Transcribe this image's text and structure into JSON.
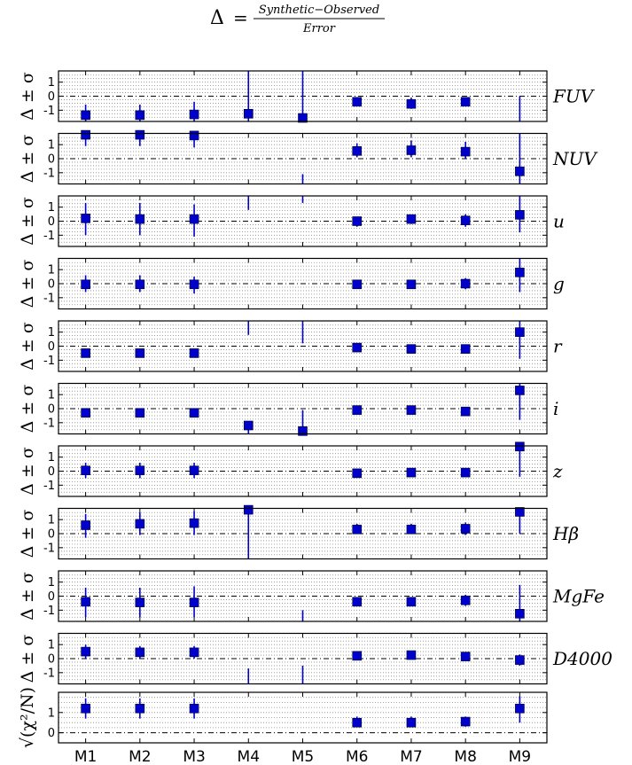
{
  "title": {
    "lhs": "Δ",
    "eq": "=",
    "numerator": "Synthetic−Observed",
    "denominator": "Error"
  },
  "chart_data": {
    "type": "scatter",
    "categories": [
      "M1",
      "M2",
      "M3",
      "M4",
      "M5",
      "M6",
      "M7",
      "M8",
      "M9"
    ],
    "ylabel": "Δ ± σ",
    "yticks": [
      "-1",
      "0",
      "1"
    ],
    "ylim": [
      -1.8,
      1.8
    ],
    "gridlines": [
      -1.5,
      -1.25,
      -1.0,
      -0.75,
      -0.5,
      -0.25,
      0.25,
      0.5,
      0.75,
      1.0,
      1.25,
      1.5
    ],
    "marker_color": "#0000cc",
    "panels": [
      {
        "band": "FUV",
        "values": [
          -1.35,
          -1.35,
          -1.3,
          -1.25,
          -1.55,
          -0.4,
          -0.55,
          -0.4,
          null
        ],
        "err_lo": [
          -1.8,
          -1.8,
          -1.8,
          -1.8,
          -1.8,
          -0.7,
          -0.9,
          -0.7,
          -1.8
        ],
        "err_hi": [
          -0.6,
          -0.6,
          -0.4,
          1.8,
          1.8,
          -0.1,
          -0.1,
          -0.1,
          0.0
        ]
      },
      {
        "band": "NUV",
        "values": [
          1.7,
          1.7,
          1.65,
          null,
          null,
          0.55,
          0.6,
          0.5,
          -0.9
        ],
        "err_lo": [
          0.9,
          0.9,
          0.8,
          null,
          -1.8,
          0.1,
          0.1,
          0.0,
          -1.8
        ],
        "err_hi": [
          1.8,
          1.8,
          1.8,
          null,
          -1.1,
          1.1,
          1.3,
          1.2,
          1.8
        ]
      },
      {
        "band": "u",
        "values": [
          0.2,
          0.15,
          0.15,
          null,
          null,
          0.0,
          0.15,
          0.05,
          0.45
        ],
        "err_lo": [
          -1.0,
          -1.0,
          -1.1,
          0.8,
          1.3,
          -0.4,
          -0.2,
          -0.4,
          -0.8
        ],
        "err_hi": [
          1.3,
          1.3,
          1.2,
          1.8,
          1.8,
          0.3,
          0.4,
          0.5,
          1.8
        ]
      },
      {
        "band": "g",
        "values": [
          -0.05,
          -0.05,
          -0.05,
          null,
          null,
          -0.05,
          -0.05,
          0.0,
          0.8
        ],
        "err_lo": [
          -0.6,
          -0.6,
          -0.7,
          null,
          null,
          -0.3,
          -0.3,
          -0.4,
          -0.6
        ],
        "err_hi": [
          0.6,
          0.6,
          0.5,
          null,
          null,
          0.2,
          0.2,
          0.4,
          1.8
        ]
      },
      {
        "band": "r",
        "values": [
          -0.5,
          -0.5,
          -0.5,
          null,
          null,
          -0.1,
          -0.2,
          -0.2,
          1.0
        ],
        "err_lo": [
          -0.7,
          -0.7,
          -0.8,
          0.8,
          0.2,
          -0.3,
          -0.4,
          -0.4,
          -0.9
        ],
        "err_hi": [
          -0.3,
          -0.3,
          -0.3,
          1.8,
          1.8,
          0.1,
          0.0,
          0.0,
          1.8
        ]
      },
      {
        "band": "i",
        "values": [
          -0.3,
          -0.3,
          -0.3,
          -1.2,
          -1.6,
          -0.1,
          -0.1,
          -0.2,
          1.3
        ],
        "err_lo": [
          -0.4,
          -0.4,
          -0.4,
          -1.8,
          -1.8,
          -0.2,
          -0.2,
          -0.3,
          -0.8
        ],
        "err_hi": [
          -0.2,
          -0.2,
          -0.2,
          -0.9,
          -0.1,
          0.0,
          0.0,
          -0.1,
          1.8
        ]
      },
      {
        "band": "z",
        "values": [
          0.05,
          0.05,
          0.05,
          null,
          null,
          -0.15,
          -0.1,
          -0.1,
          1.75
        ],
        "err_lo": [
          -0.5,
          -0.5,
          -0.5,
          null,
          null,
          -0.3,
          -0.3,
          -0.3,
          -0.4
        ],
        "err_hi": [
          0.6,
          0.6,
          0.6,
          null,
          null,
          0.1,
          0.1,
          0.1,
          1.8
        ]
      },
      {
        "band": "Hβ",
        "values": [
          0.6,
          0.7,
          0.75,
          1.7,
          null,
          0.3,
          0.3,
          0.35,
          1.55
        ],
        "err_lo": [
          -0.3,
          -0.1,
          -0.1,
          -1.8,
          null,
          0.0,
          0.0,
          -0.1,
          0.0
        ],
        "err_hi": [
          1.4,
          1.5,
          1.6,
          1.8,
          null,
          0.7,
          0.7,
          0.8,
          1.8
        ]
      },
      {
        "band": "MgFe",
        "values": [
          -0.4,
          -0.45,
          -0.45,
          null,
          null,
          -0.4,
          -0.4,
          -0.3,
          -1.25
        ],
        "err_lo": [
          -1.5,
          -1.5,
          -1.5,
          null,
          -1.8,
          -0.7,
          -0.7,
          -0.7,
          -1.8
        ],
        "err_hi": [
          0.6,
          0.6,
          0.7,
          null,
          -1.0,
          -0.1,
          -0.1,
          0.1,
          0.8
        ]
      },
      {
        "band": "D4000",
        "values": [
          0.5,
          0.45,
          0.45,
          null,
          null,
          0.2,
          0.25,
          0.15,
          -0.1
        ],
        "err_lo": [
          0.0,
          0.0,
          0.0,
          -1.8,
          -1.8,
          0.0,
          0.1,
          0.0,
          -0.5
        ],
        "err_hi": [
          1.0,
          0.9,
          0.9,
          -0.7,
          -0.5,
          0.4,
          0.4,
          0.4,
          0.3
        ]
      }
    ],
    "chi_panel": {
      "ylabel": "√(χ²/N)",
      "yticks": [
        "0",
        "1"
      ],
      "ylim": [
        -0.5,
        2.0
      ],
      "values": [
        1.2,
        1.2,
        1.2,
        null,
        null,
        0.5,
        0.5,
        0.55,
        1.2
      ],
      "err_lo": [
        0.7,
        0.7,
        0.7,
        null,
        null,
        0.3,
        0.3,
        0.3,
        0.5
      ],
      "err_hi": [
        1.7,
        1.7,
        1.7,
        null,
        null,
        0.8,
        0.8,
        0.8,
        1.8
      ]
    }
  }
}
